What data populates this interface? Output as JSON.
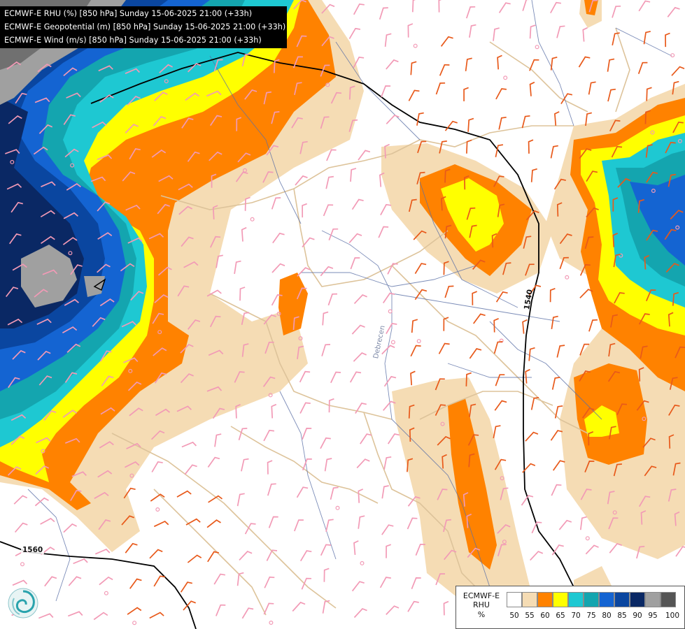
{
  "header": {
    "lines": [
      "ECMWF-E RHU (%) [850 hPa] Sunday 15-06-2025 21:00 (+33h)",
      "ECMWF-E Geopotential (m) [850 hPa] Sunday 15-06-2025 21:00 (+33h)",
      "ECMWF-E Wind (m/s) [850 hPa] Sunday 15-06-2025 21:00 (+33h)"
    ]
  },
  "legend": {
    "model": "ECMWF-E",
    "field": "RHU",
    "unit": "%",
    "ticks": [
      "50",
      "55",
      "60",
      "65",
      "70",
      "75",
      "80",
      "85",
      "90",
      "95",
      "100"
    ],
    "colors": [
      "#ffffff",
      "#f5dcb4",
      "#ff8200",
      "#ffff00",
      "#1ec8d2",
      "#14a5af",
      "#1464d2",
      "#0a46a0",
      "#0a2864",
      "#a0a0a0",
      "#555555"
    ]
  },
  "contours": {
    "label_a": "1540",
    "label_b": "1560"
  },
  "map_labels": {
    "station": "Debrecen"
  },
  "map_colors": {
    "border": "#222222",
    "coast": "#ddc39a",
    "river": "#5a6fa6",
    "wind_pink": "#f29ab6",
    "wind_orange": "#e8591a"
  },
  "icons": {
    "logo": "swirl-logo-icon"
  }
}
